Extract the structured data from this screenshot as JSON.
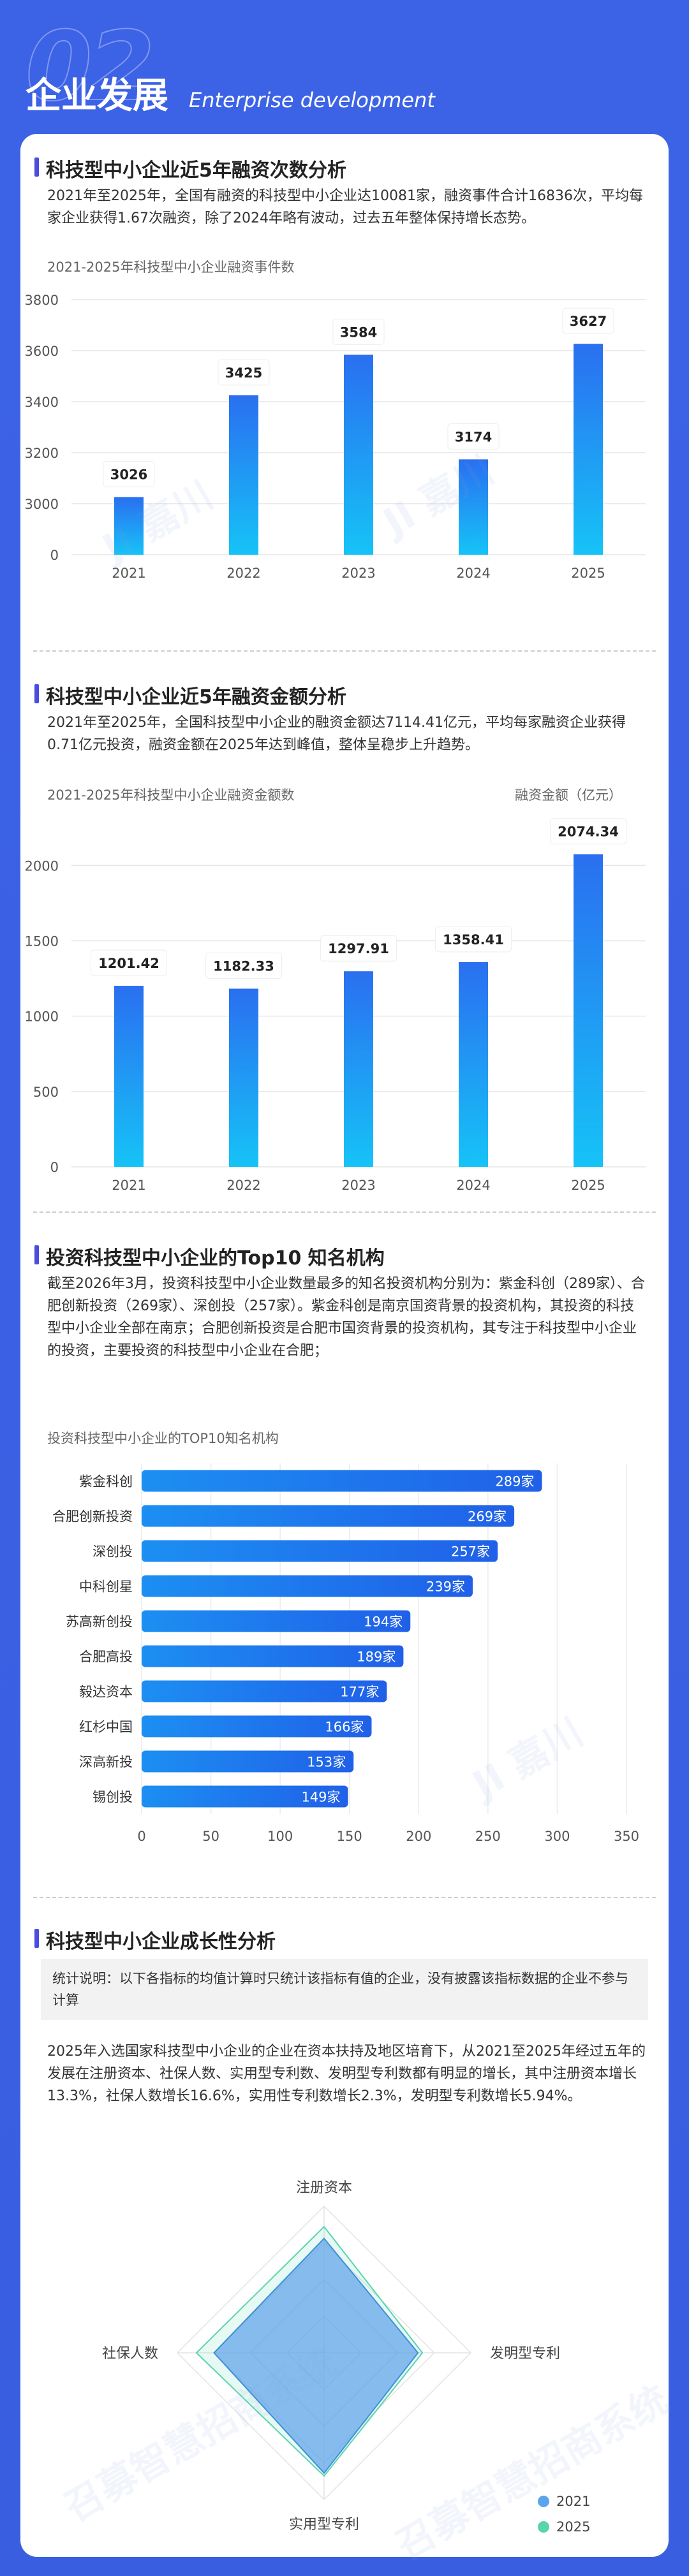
{
  "header": {
    "number": "02",
    "title": "企业发展",
    "subtitle": "Enterprise development"
  },
  "sections": {
    "count": {
      "title": "科技型中小企业近5年融资次数分析",
      "paragraph": "2021年至2025年，全国有融资的科技型中小企业达10081家，融资事件合计16836次，平均每家企业获得1.67次融资，除了2024年略有波动，过去五年整体保持增长态势。",
      "caption": "2021-2025年科技型中小企业融资事件数"
    },
    "amount": {
      "title": "科技型中小企业近5年融资金额分析",
      "paragraph": "2021年至2025年，全国科技型中小企业的融资金额达7114.41亿元，平均每家融资企业获得0.71亿元投资，融资金额在2025年达到峰值，整体呈稳步上升趋势。",
      "caption": "2021-2025年科技型中小企业融资金额数",
      "unit": "融资金额（亿元）"
    },
    "top10": {
      "title": "投资科技型中小企业的Top10 知名机构",
      "paragraph": "截至2026年3月，投资科技型中小企业数量最多的知名投资机构分别为：紫金科创（289家）、合肥创新投资（269家）、深创投（257家）。紫金科创是南京国资背景的投资机构，其投资的科技型中小企业全部在南京；合肥创新投资是合肥市国资背景的投资机构，其专注于科技型中小企业的投资，主要投资的科技型中小企业在合肥；",
      "caption": "投资科技型中小企业的TOP10知名机构"
    },
    "growth": {
      "title": "科技型中小企业成长性分析",
      "note": "统计说明：以下各指标的均值计算时只统计该指标有值的企业，没有披露该指标数据的企业不参与计算",
      "paragraph": "2025年入选国家科技型中小企业的企业在资本扶持及地区培育下，从2021至2025年经过五年的发展在注册资本、社保人数、实用型专利数、发明型专利数都有明显的增长，其中注册资本增长13.3%，社保人数增长16.6%，实用性专利数增长2.3%，发明型专利数增长5.94%。"
    }
  },
  "watermarks": [
    "JI 嘉川",
    "召募智慧招商系统"
  ],
  "colors": {
    "blue_top": "#2a6ff0",
    "blue_bottom": "#16c3f7",
    "bar_h_start": "#1c8ff2",
    "bar_h_end": "#2060e8",
    "radar_2021": "#5ba3ea",
    "radar_2025": "#5ad4b0"
  },
  "chart_data": [
    {
      "type": "bar",
      "categories": [
        "2021",
        "2022",
        "2023",
        "2024",
        "2025"
      ],
      "values": [
        3026,
        3425,
        3584,
        3174,
        3627
      ],
      "ylim": [
        2800,
        3800
      ],
      "yticks": [
        3800,
        3600,
        3400,
        3200,
        3000,
        0
      ],
      "axis_break": true,
      "grid": true
    },
    {
      "type": "bar",
      "categories": [
        "2021",
        "2022",
        "2023",
        "2024",
        "2025"
      ],
      "values": [
        1201.42,
        1182.33,
        1297.91,
        1358.41,
        2074.34
      ],
      "ylim": [
        0,
        2200
      ],
      "yticks": [
        2000,
        1500,
        1000,
        500,
        0
      ],
      "ylabel": "融资金额（亿元）",
      "grid": true
    },
    {
      "type": "bar",
      "orientation": "horizontal",
      "categories": [
        "紫金科创",
        "合肥创新投资",
        "深创投",
        "中科创星",
        "苏高新创投",
        "合肥高投",
        "毅达资本",
        "红杉中国",
        "深高新投",
        "锡创投"
      ],
      "values": [
        289,
        269,
        257,
        239,
        194,
        189,
        177,
        166,
        153,
        149
      ],
      "value_suffix": "家",
      "xlim": [
        0,
        350
      ],
      "xticks": [
        0,
        50,
        100,
        150,
        200,
        250,
        300,
        350
      ],
      "grid": true
    },
    {
      "type": "radar",
      "axes": [
        "注册资本",
        "发明型专利",
        "实用型专利",
        "社保人数"
      ],
      "series": [
        {
          "name": "2021",
          "values": [
            0.78,
            0.64,
            0.82,
            0.75
          ]
        },
        {
          "name": "2025",
          "values": [
            0.86,
            0.67,
            0.84,
            0.87
          ]
        }
      ],
      "legend": "bottom-right"
    }
  ]
}
